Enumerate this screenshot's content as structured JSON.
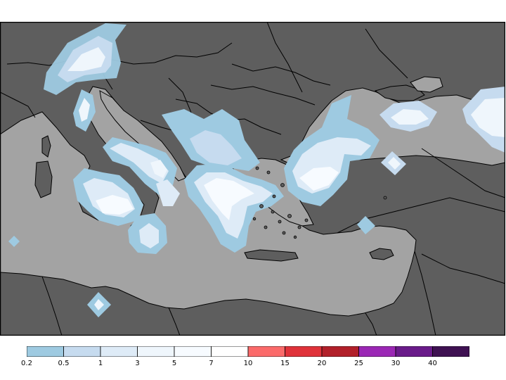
{
  "colors": {
    "land": "#5e5e5e",
    "sea": "#a3a3a3",
    "border": "#000000",
    "frame": "#000000"
  },
  "legend": {
    "classes": [
      {
        "from": "0.2",
        "to": "0.5",
        "color": "#9ecae1"
      },
      {
        "from": "0.5",
        "to": "1",
        "color": "#c6dbef"
      },
      {
        "from": "1",
        "to": "3",
        "color": "#deebf7"
      },
      {
        "from": "3",
        "to": "5",
        "color": "#eff6fc"
      },
      {
        "from": "5",
        "to": "7",
        "color": "#f7fbff"
      },
      {
        "from": "7",
        "to": "10",
        "color": "#ffffff"
      },
      {
        "from": "10",
        "to": "15",
        "color": "#fb6a6a"
      },
      {
        "from": "15",
        "to": "20",
        "color": "#e0323a"
      },
      {
        "from": "20",
        "to": "25",
        "color": "#b2202a"
      },
      {
        "from": "25",
        "to": "30",
        "color": "#9b27b5"
      },
      {
        "from": "30",
        "to": "40",
        "color": "#6a1b8a"
      },
      {
        "from": "40",
        "to": "",
        "color": "#3f1152"
      }
    ],
    "tick_labels": [
      "0.2",
      "0.5",
      "1",
      "3",
      "5",
      "7",
      "10",
      "15",
      "20",
      "25",
      "30",
      "40"
    ]
  },
  "precip_patches": [
    {
      "name": "alps-north",
      "level": "0.2-0.5"
    },
    {
      "name": "alps-core",
      "level": "3-5"
    },
    {
      "name": "italy-north",
      "level": "1-3"
    },
    {
      "name": "italy-central",
      "level": "1-3"
    },
    {
      "name": "italy-south",
      "level": "3-5"
    },
    {
      "name": "sicily",
      "level": "5-7"
    },
    {
      "name": "ionian-spot",
      "level": "1-3"
    },
    {
      "name": "balkans-west",
      "level": "0.5-1"
    },
    {
      "name": "greece-north",
      "level": "5-7"
    },
    {
      "name": "aegean-north",
      "level": "3-5"
    },
    {
      "name": "turkey-west",
      "level": "5-7"
    },
    {
      "name": "black-sea-west",
      "level": "3-5"
    },
    {
      "name": "black-sea-north",
      "level": "1-3"
    },
    {
      "name": "caucasus",
      "level": "3-5"
    },
    {
      "name": "anatolia-spot",
      "level": "1-3"
    },
    {
      "name": "libya-spot",
      "level": "1-3"
    },
    {
      "name": "tunisia-spot",
      "level": "0.2-0.5"
    }
  ]
}
